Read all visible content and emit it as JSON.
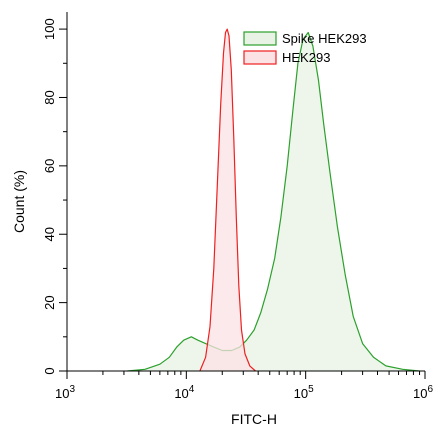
{
  "chart_data": {
    "type": "area",
    "title": "",
    "xlabel": "FITC-H",
    "ylabel": "Count (%)",
    "x_scale": "log",
    "xlim": [
      1000,
      1000000
    ],
    "ylim": [
      0,
      105
    ],
    "x_ticks": [
      {
        "value": 1000,
        "base": "10",
        "exp": "3"
      },
      {
        "value": 10000,
        "base": "10",
        "exp": "4"
      },
      {
        "value": 100000,
        "base": "10",
        "exp": "5"
      },
      {
        "value": 1000000,
        "base": "10",
        "exp": "6"
      }
    ],
    "y_ticks": [
      "0",
      "20",
      "40",
      "60",
      "80",
      "100"
    ],
    "grid": false,
    "legend_position": "top-right",
    "series": [
      {
        "name": "Spike HEK293",
        "stroke": "#2ca02c",
        "fill": "#e8f3e6",
        "x": [
          3200,
          4500,
          6000,
          7200,
          8300,
          9500,
          11000,
          12500,
          14500,
          17000,
          20000,
          24000,
          28000,
          32000,
          37000,
          42000,
          48000,
          55000,
          62000,
          70000,
          78000,
          86000,
          95000,
          105000,
          115000,
          128000,
          142000,
          160000,
          185000,
          215000,
          250000,
          300000,
          370000,
          470000,
          650000,
          900000
        ],
        "y": [
          0,
          0.5,
          2,
          4,
          7,
          9,
          10,
          9,
          8,
          7,
          6,
          6,
          7,
          9,
          12,
          17,
          24,
          33,
          45,
          60,
          76,
          90,
          97,
          99,
          95,
          85,
          72,
          58,
          42,
          28,
          16,
          8,
          4,
          1.5,
          0.5,
          0
        ]
      },
      {
        "name": "HEK293",
        "stroke": "#ee2020",
        "fill": "#fbe2e4",
        "x": [
          13000,
          14500,
          15800,
          17000,
          18200,
          19400,
          20500,
          21300,
          22000,
          22800,
          23800,
          25000,
          26200,
          27500,
          29000,
          31000,
          34000,
          38000
        ],
        "y": [
          0,
          4,
          13,
          30,
          55,
          78,
          93,
          99,
          100,
          98,
          88,
          68,
          45,
          25,
          12,
          5,
          1.5,
          0
        ]
      }
    ]
  }
}
